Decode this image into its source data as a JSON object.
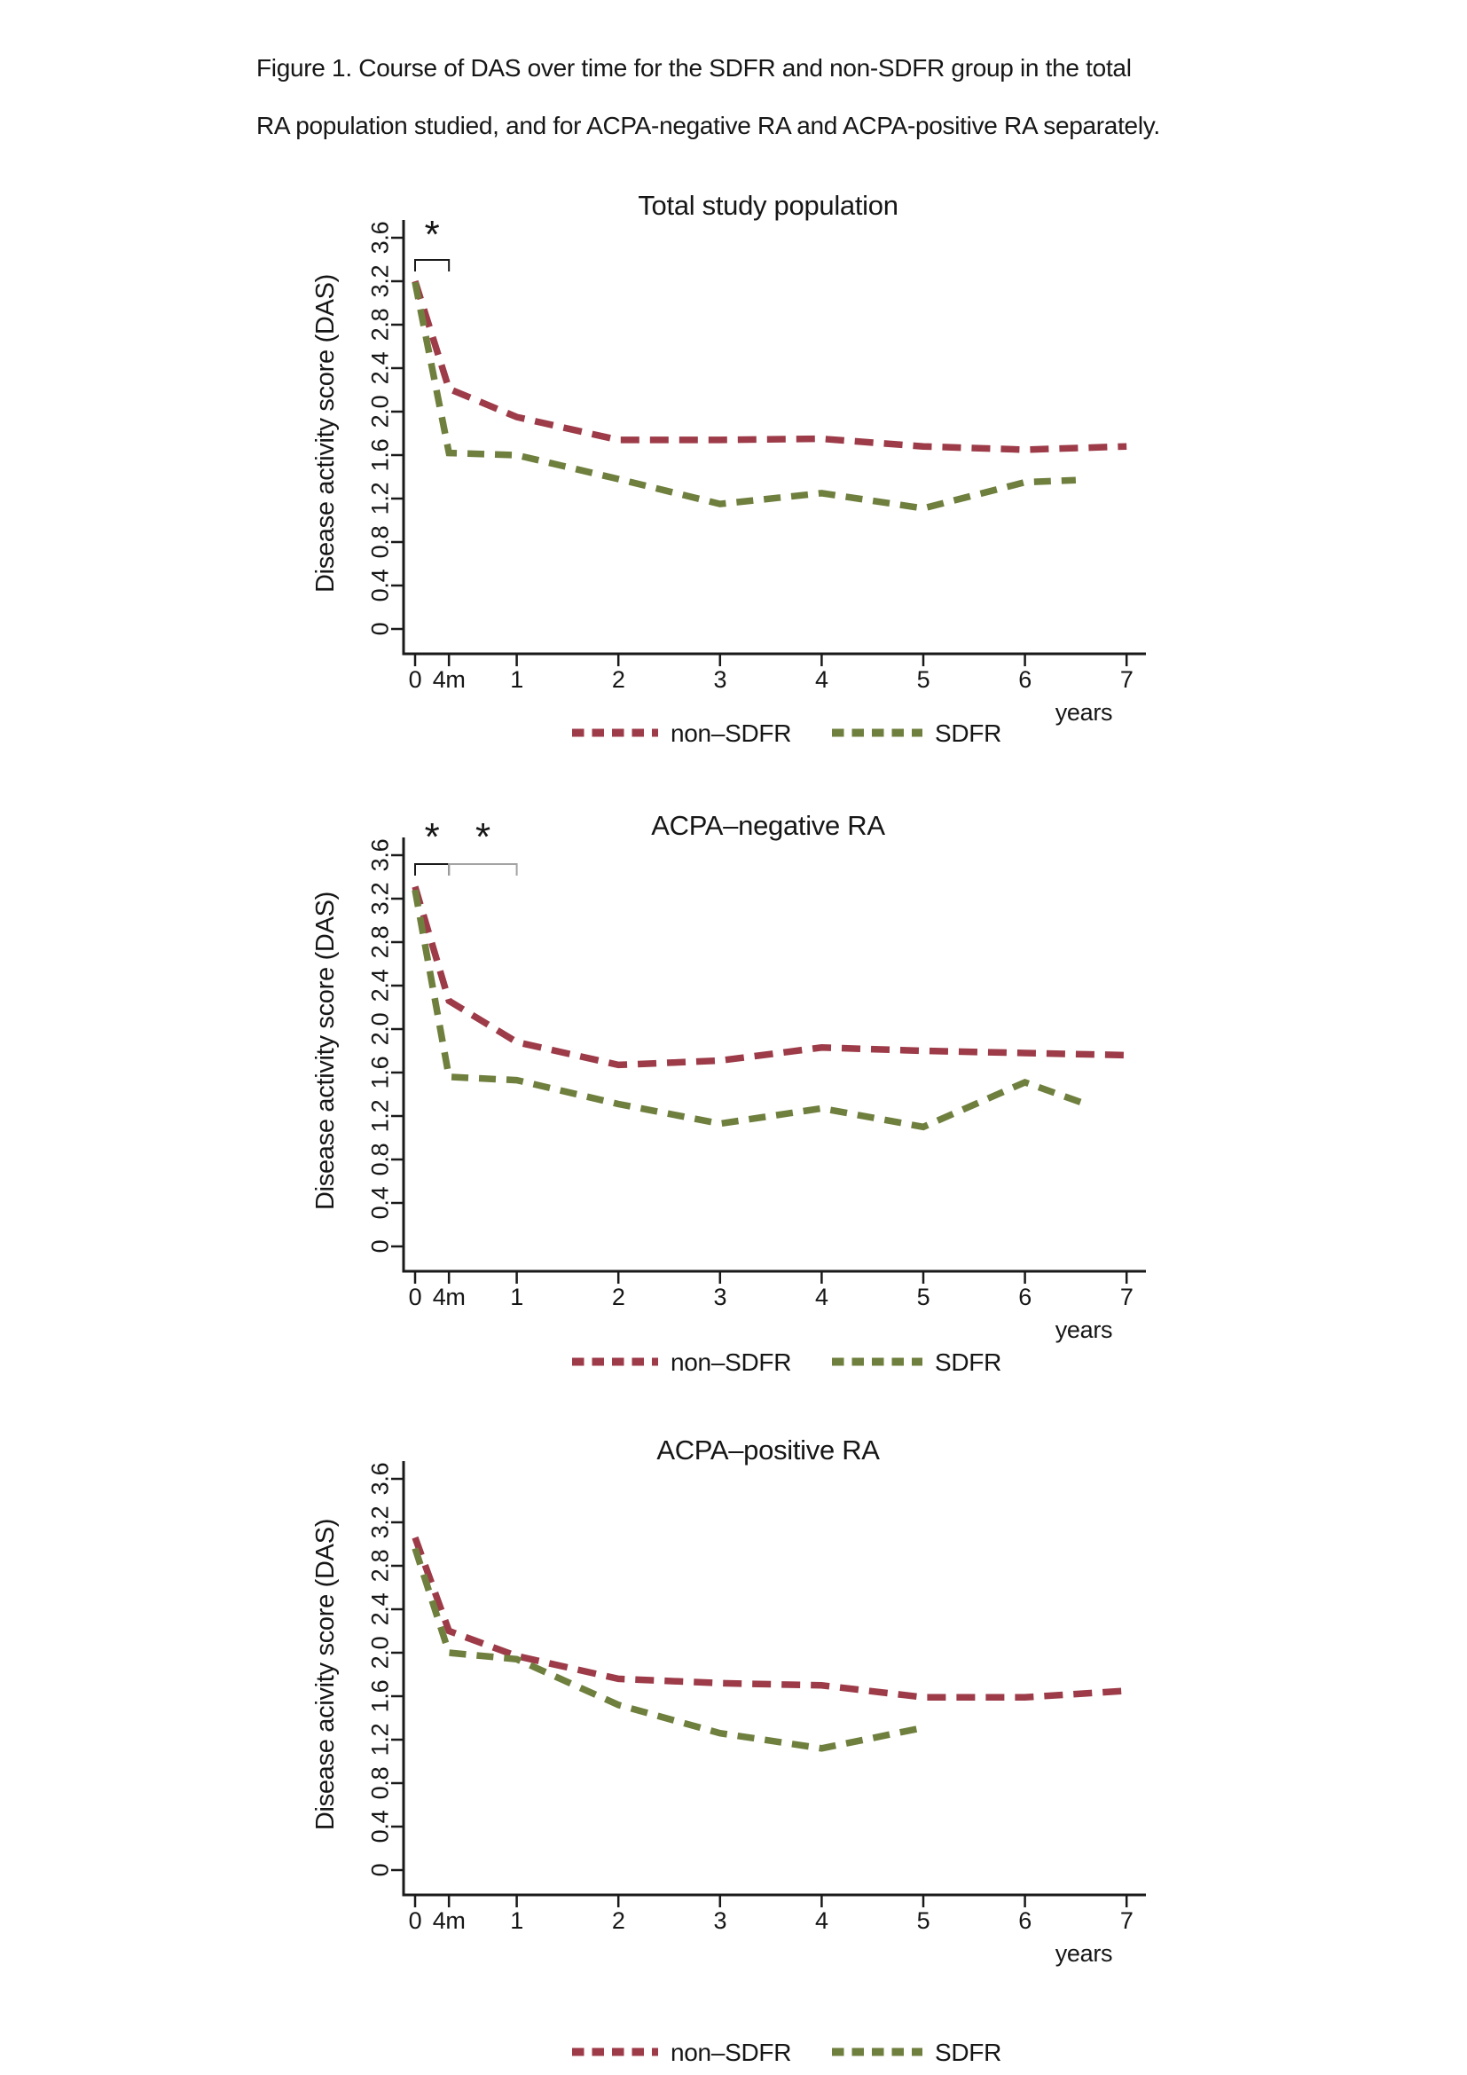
{
  "caption": {
    "line1": "Figure 1. Course of DAS over time for the SDFR and non-SDFR group in the total",
    "line2": "RA population studied, and for ACPA-negative RA and ACPA-positive RA separately."
  },
  "colors": {
    "non_sdfr": "#9d3b48",
    "sdfr": "#6f7f3e",
    "axis": "#1a1a1a",
    "gray_annotation": "#a3a3a3"
  },
  "legend": {
    "entries": [
      "non–SDFR",
      "SDFR"
    ]
  },
  "chart_data": [
    {
      "type": "line",
      "title": "Total study population",
      "ylabel": "Disease activity score (DAS)",
      "xlabel": "years",
      "ylim": [
        0,
        3.6
      ],
      "y_tick_labels": [
        "0",
        "0.4",
        "0.8",
        "1.2",
        "1.6",
        "2.0",
        "2.4",
        "2.8",
        "3.2",
        "3.6"
      ],
      "x_ticks": [
        {
          "x": 0,
          "label": "0"
        },
        {
          "x": 0.333,
          "label": "4m"
        },
        {
          "x": 1,
          "label": "1"
        },
        {
          "x": 2,
          "label": "2"
        },
        {
          "x": 3,
          "label": "3"
        },
        {
          "x": 4,
          "label": "4"
        },
        {
          "x": 5,
          "label": "5"
        },
        {
          "x": 6,
          "label": "6"
        },
        {
          "x": 7,
          "label": "7"
        }
      ],
      "series": [
        {
          "name": "non–SDFR",
          "color_key": "non_sdfr",
          "points": [
            [
              0,
              3.2
            ],
            [
              0.333,
              2.21
            ],
            [
              1,
              1.95
            ],
            [
              2,
              1.74
            ],
            [
              3,
              1.74
            ],
            [
              4,
              1.75
            ],
            [
              5,
              1.68
            ],
            [
              6,
              1.65
            ],
            [
              7,
              1.68
            ]
          ]
        },
        {
          "name": "SDFR",
          "color_key": "sdfr",
          "points": [
            [
              0,
              3.19
            ],
            [
              0.333,
              1.62
            ],
            [
              1,
              1.6
            ],
            [
              2,
              1.38
            ],
            [
              3,
              1.15
            ],
            [
              4,
              1.25
            ],
            [
              5,
              1.11
            ],
            [
              6,
              1.35
            ],
            [
              6.5,
              1.37
            ]
          ]
        }
      ],
      "significance": [
        {
          "from": 0,
          "to": 0.333,
          "label": "*",
          "color": "#1a1a1a"
        }
      ],
      "legend_position": "bottom-center",
      "grid": false
    },
    {
      "type": "line",
      "title": "ACPA–negative RA",
      "ylabel": "Disease activity score (DAS)",
      "xlabel": "years",
      "ylim": [
        0,
        3.6
      ],
      "y_tick_labels": [
        "0",
        "0.4",
        "0.8",
        "1.2",
        "1.6",
        "2.0",
        "2.4",
        "2.8",
        "3.2",
        "3.6"
      ],
      "x_ticks": [
        {
          "x": 0,
          "label": "0"
        },
        {
          "x": 0.333,
          "label": "4m"
        },
        {
          "x": 1,
          "label": "1"
        },
        {
          "x": 2,
          "label": "2"
        },
        {
          "x": 3,
          "label": "3"
        },
        {
          "x": 4,
          "label": "4"
        },
        {
          "x": 5,
          "label": "5"
        },
        {
          "x": 6,
          "label": "6"
        },
        {
          "x": 7,
          "label": "7"
        }
      ],
      "series": [
        {
          "name": "non–SDFR",
          "color_key": "non_sdfr",
          "points": [
            [
              0,
              3.31
            ],
            [
              0.333,
              2.26
            ],
            [
              1,
              1.88
            ],
            [
              2,
              1.67
            ],
            [
              3,
              1.71
            ],
            [
              4,
              1.83
            ],
            [
              5,
              1.8
            ],
            [
              6,
              1.78
            ],
            [
              7,
              1.76
            ]
          ]
        },
        {
          "name": "SDFR",
          "color_key": "sdfr",
          "points": [
            [
              0,
              3.28
            ],
            [
              0.333,
              1.56
            ],
            [
              1,
              1.53
            ],
            [
              2,
              1.31
            ],
            [
              3,
              1.13
            ],
            [
              4,
              1.27
            ],
            [
              5,
              1.1
            ],
            [
              6,
              1.51
            ],
            [
              6.6,
              1.31
            ]
          ]
        }
      ],
      "significance": [
        {
          "from": 0,
          "to": 0.333,
          "label": "*",
          "color": "#1a1a1a"
        },
        {
          "from": 0.333,
          "to": 1,
          "label": "*",
          "color": "#a3a3a3"
        }
      ],
      "legend_position": "bottom-center",
      "grid": false
    },
    {
      "type": "line",
      "title": "ACPA–positive RA",
      "ylabel": "Disease acivity score (DAS)",
      "xlabel": "years",
      "ylim": [
        0,
        3.6
      ],
      "y_tick_labels": [
        "0",
        "0.4",
        "0.8",
        "1.2",
        "1.6",
        "2.0",
        "2.4",
        "2.8",
        "3.2",
        "3.6"
      ],
      "x_ticks": [
        {
          "x": 0,
          "label": "0"
        },
        {
          "x": 0.333,
          "label": "4m"
        },
        {
          "x": 1,
          "label": "1"
        },
        {
          "x": 2,
          "label": "2"
        },
        {
          "x": 3,
          "label": "3"
        },
        {
          "x": 4,
          "label": "4"
        },
        {
          "x": 5,
          "label": "5"
        },
        {
          "x": 6,
          "label": "6"
        },
        {
          "x": 7,
          "label": "7"
        }
      ],
      "series": [
        {
          "name": "non–SDFR",
          "color_key": "non_sdfr",
          "points": [
            [
              0,
              3.06
            ],
            [
              0.333,
              2.2
            ],
            [
              1,
              1.97
            ],
            [
              2,
              1.76
            ],
            [
              3,
              1.72
            ],
            [
              4,
              1.7
            ],
            [
              5,
              1.59
            ],
            [
              6,
              1.59
            ],
            [
              7,
              1.65
            ]
          ]
        },
        {
          "name": "SDFR",
          "color_key": "sdfr",
          "points": [
            [
              0,
              2.96
            ],
            [
              0.333,
              2.0
            ],
            [
              1,
              1.94
            ],
            [
              2,
              1.52
            ],
            [
              3,
              1.26
            ],
            [
              4,
              1.12
            ],
            [
              5,
              1.31
            ]
          ]
        }
      ],
      "significance": [],
      "legend_position": "bottom-center",
      "grid": false
    }
  ]
}
